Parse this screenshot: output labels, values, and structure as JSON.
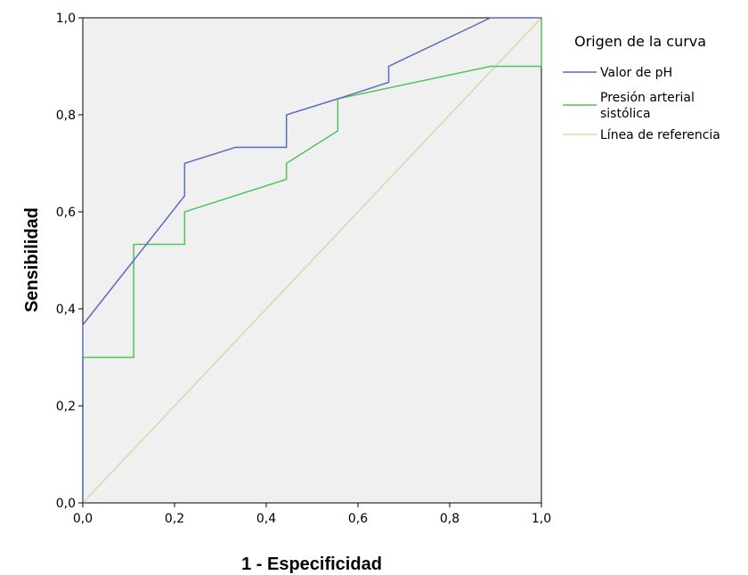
{
  "chart_data": {
    "type": "line",
    "xlabel": "1 - Especificidad",
    "ylabel": "Sensibilidad",
    "xlim": [
      0,
      1
    ],
    "ylim": [
      0,
      1
    ],
    "x_ticks": [
      "0,0",
      "0,2",
      "0,4",
      "0,6",
      "0,8",
      "1,0"
    ],
    "y_ticks": [
      "0,0",
      "0,2",
      "0,4",
      "0,6",
      "0,8",
      "1,0"
    ],
    "plot_background": "#f0f0f0",
    "legend": {
      "title": "Origen de la curva",
      "placement": "right"
    },
    "series": [
      {
        "name": "Valor de pH",
        "color": "#5b6bbf",
        "points": [
          [
            0,
            0
          ],
          [
            0,
            0.367
          ],
          [
            0.222,
            0.633
          ],
          [
            0.222,
            0.7
          ],
          [
            0.333,
            0.733
          ],
          [
            0.444,
            0.733
          ],
          [
            0.444,
            0.8
          ],
          [
            0.556,
            0.833
          ],
          [
            0.667,
            0.867
          ],
          [
            0.667,
            0.9
          ],
          [
            0.889,
            1.0
          ],
          [
            1.0,
            1.0
          ]
        ]
      },
      {
        "name_lines": [
          "Presión arterial",
          "sistólica"
        ],
        "color": "#4ec45a",
        "points": [
          [
            0,
            0
          ],
          [
            0,
            0.3
          ],
          [
            0.111,
            0.3
          ],
          [
            0.111,
            0.533
          ],
          [
            0.222,
            0.533
          ],
          [
            0.222,
            0.6
          ],
          [
            0.444,
            0.667
          ],
          [
            0.444,
            0.7
          ],
          [
            0.556,
            0.767
          ],
          [
            0.556,
            0.833
          ],
          [
            0.889,
            0.9
          ],
          [
            1.0,
            0.9
          ],
          [
            1.0,
            1.0
          ]
        ]
      },
      {
        "name": "Línea de referencia",
        "color": "#dcd7a8",
        "points": [
          [
            0,
            0
          ],
          [
            1,
            1
          ]
        ]
      }
    ]
  }
}
